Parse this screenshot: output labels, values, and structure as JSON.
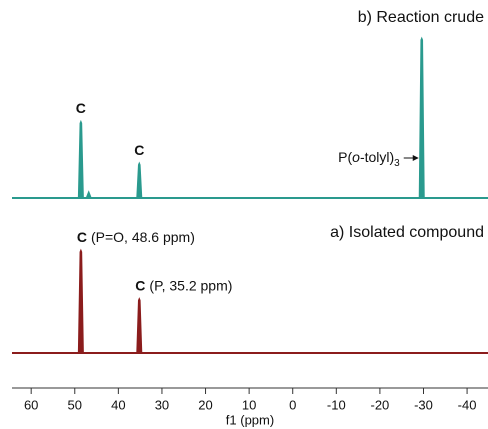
{
  "chart_data": {
    "type": "nmr",
    "x_label": "f1 (ppm)",
    "xlim": [
      64.4,
      -44.8
    ],
    "xticks": [
      60,
      50,
      40,
      30,
      20,
      10,
      0,
      -10,
      -20,
      -30,
      -40
    ],
    "spectra": [
      {
        "name": "b) Reaction crude",
        "color": "#2a9a8e",
        "peaks": [
          {
            "x": 48.6,
            "intensity": 48,
            "label": "C"
          },
          {
            "x": 46.8,
            "intensity": 4
          },
          {
            "x": 35.2,
            "intensity": 22,
            "label": "C"
          },
          {
            "x": -29.6,
            "intensity": 100,
            "annotation": [
              "P(",
              "o",
              "-tolyl)",
              "3"
            ]
          }
        ]
      },
      {
        "name": "a) Isolated compound",
        "color": "#8b1c1c",
        "peaks": [
          {
            "x": 48.6,
            "intensity": 100,
            "label": "C",
            "note": "(P=O, 48.6 ppm)"
          },
          {
            "x": 35.2,
            "intensity": 53,
            "label": "C",
            "note": "(P, 35.2 ppm)"
          }
        ]
      }
    ]
  }
}
